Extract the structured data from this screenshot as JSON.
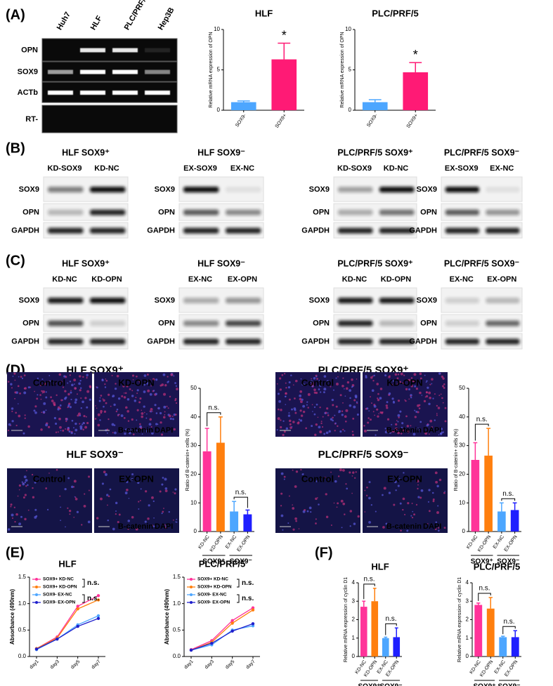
{
  "panel_labels": [
    "(A)",
    "(B)",
    "(C)",
    "(D)",
    "(E)",
    "(F)"
  ],
  "gel_a": {
    "lanes": [
      "Huh7",
      "HLF",
      "PLC/PRF/5",
      "Hep3B"
    ],
    "rows": [
      "OPN",
      "SOX9",
      "ACTb",
      "RT-"
    ]
  },
  "blots_b": [
    {
      "title": "HLF SOX9⁺",
      "lanes": [
        "KD-SOX9",
        "KD-NC"
      ],
      "rows": [
        "SOX9",
        "OPN",
        "GAPDH"
      ]
    },
    {
      "title": "HLF SOX9⁻",
      "lanes": [
        "EX-SOX9",
        "EX-NC"
      ],
      "rows": [
        "SOX9",
        "OPN",
        "GAPDH"
      ]
    },
    {
      "title": "PLC/PRF/5 SOX9⁺",
      "lanes": [
        "KD-SOX9",
        "KD-NC"
      ],
      "rows": [
        "SOX9",
        "OPN",
        "GAPDH"
      ]
    },
    {
      "title": "PLC/PRF/5 SOX9⁻",
      "lanes": [
        "EX-SOX9",
        "EX-NC"
      ],
      "rows": [
        "SOX9",
        "OPN",
        "GAPDH"
      ]
    }
  ],
  "blots_c": [
    {
      "title": "HLF SOX9⁺",
      "lanes": [
        "KD-NC",
        "KD-OPN"
      ],
      "rows": [
        "SOX9",
        "OPN",
        "GAPDH"
      ]
    },
    {
      "title": "HLF SOX9⁻",
      "lanes": [
        "EX-NC",
        "EX-OPN"
      ],
      "rows": [
        "SOX9",
        "OPN",
        "GAPDH"
      ]
    },
    {
      "title": "PLC/PRF/5 SOX9⁺",
      "lanes": [
        "KD-NC",
        "KD-OPN"
      ],
      "rows": [
        "SOX9",
        "OPN",
        "GAPDH"
      ]
    },
    {
      "title": "PLC/PRF/5 SOX9⁻",
      "lanes": [
        "EX-NC",
        "EX-OPN"
      ],
      "rows": [
        "SOX9",
        "OPN",
        "GAPDH"
      ]
    }
  ],
  "micrographs": [
    {
      "title": "HLF SOX9⁺",
      "panels": [
        "Control",
        "KD-OPN"
      ],
      "stain": [
        "B-catenin",
        "DAPI"
      ]
    },
    {
      "title": "HLF SOX9⁻",
      "panels": [
        "Control",
        "EX-OPN"
      ],
      "stain": [
        "B-catenin",
        "DAPI"
      ]
    },
    {
      "title": "PLC/PRF/5 SOX9⁺",
      "panels": [
        "Control",
        "KD-OPN"
      ],
      "stain": [
        "B-catenin",
        "DAPI"
      ]
    },
    {
      "title": "PLC/PRF/5 SOX9⁻",
      "panels": [
        "Control",
        "EX-OPN"
      ],
      "stain": [
        "B-catenin",
        "DAPI"
      ]
    }
  ],
  "chart_data": [
    {
      "type": "bar",
      "title": "HLF",
      "y_label": "Relative mRNA expression of OPN",
      "categories": [
        "SOX9-",
        "SOX9+"
      ],
      "values": [
        1.0,
        6.3
      ],
      "errors": [
        0.15,
        2.0
      ],
      "colors": [
        "#4da6ff",
        "#ff1a75"
      ],
      "ylim": [
        0,
        10
      ],
      "yticks": [
        0,
        5,
        10
      ],
      "annotations": [
        "*"
      ]
    },
    {
      "type": "bar",
      "title": "PLC/PRF/5",
      "y_label": "Relative mRNA expression of OPN",
      "categories": [
        "SOX9-",
        "SOX9+"
      ],
      "values": [
        1.0,
        4.7
      ],
      "errors": [
        0.3,
        1.2
      ],
      "colors": [
        "#4da6ff",
        "#ff1a75"
      ],
      "ylim": [
        0,
        10
      ],
      "yticks": [
        0,
        5,
        10
      ],
      "annotations": [
        "*"
      ]
    },
    {
      "type": "bar",
      "y_label": "Ratio of B-catenin+ cells (%)",
      "categories": [
        "KD-NC",
        "KD-OPN",
        "EX-NC",
        "EX-OPN"
      ],
      "values": [
        28,
        31,
        7,
        6
      ],
      "errors": [
        8,
        9,
        3.5,
        1.5
      ],
      "colors": [
        "#ff3399",
        "#ff7f0e",
        "#4da6ff",
        "#1f1fff"
      ],
      "ylim": [
        0,
        50
      ],
      "yticks": [
        0,
        10,
        20,
        30,
        40,
        50
      ],
      "groups": [
        "SOX9⁺",
        "SOX9⁻"
      ],
      "annotations": [
        "n.s.",
        "n.s."
      ]
    },
    {
      "type": "bar",
      "y_label": "Ratio of B-catenin+ cells (%)",
      "categories": [
        "KD-NC",
        "KD-OPN",
        "EX-NC",
        "EX-OPN"
      ],
      "values": [
        25,
        26.5,
        7,
        7.5
      ],
      "errors": [
        6,
        9.5,
        3,
        2.5
      ],
      "colors": [
        "#ff3399",
        "#ff7f0e",
        "#4da6ff",
        "#1f1fff"
      ],
      "ylim": [
        0,
        50
      ],
      "yticks": [
        0,
        10,
        20,
        30,
        40,
        50
      ],
      "groups": [
        "SOX9⁺",
        "SOX9⁻"
      ],
      "annotations": [
        "n.s.",
        "n.s."
      ]
    },
    {
      "type": "line",
      "title": "HLF",
      "y_label": "Absorbance (490nm)",
      "categories": [
        "day1",
        "day3",
        "day5",
        "day7"
      ],
      "ylim": [
        0,
        1.5
      ],
      "yticks": [
        {
          "value": 0,
          "label": "0.0"
        },
        0.5,
        {
          "value": 1,
          "label": "1.0"
        },
        1.5
      ],
      "series": [
        {
          "name": "SOX9+ KD-NC",
          "color": "#ff3399",
          "values": [
            0.15,
            0.37,
            0.95,
            1.15
          ]
        },
        {
          "name": "SOX9+ KD-OPN",
          "color": "#ff7f0e",
          "values": [
            0.15,
            0.35,
            0.9,
            1.07
          ]
        },
        {
          "name": "SOX9-  EX-NC",
          "color": "#4da6ff",
          "values": [
            0.13,
            0.33,
            0.6,
            0.77
          ]
        },
        {
          "name": "SOX9-  EX-OPN",
          "color": "#1f1fcc",
          "values": [
            0.14,
            0.33,
            0.57,
            0.72
          ]
        }
      ],
      "annotations": [
        "n.s.",
        "n.s."
      ]
    },
    {
      "type": "line",
      "title": "PLC/PRF/5",
      "y_label": "Absorbance (490nm)",
      "categories": [
        "day1",
        "day3",
        "day5",
        "day7"
      ],
      "ylim": [
        0,
        1.5
      ],
      "yticks": [
        {
          "value": 0,
          "label": "0.0"
        },
        0.5,
        {
          "value": 1,
          "label": "1.0"
        },
        1.5
      ],
      "series": [
        {
          "name": "SOX9+ KD-NC",
          "color": "#ff3399",
          "values": [
            0.13,
            0.3,
            0.68,
            0.92
          ]
        },
        {
          "name": "SOX9+ KD-OPN",
          "color": "#ff7f0e",
          "values": [
            0.12,
            0.27,
            0.63,
            0.88
          ]
        },
        {
          "name": "SOX9-  EX-NC",
          "color": "#4da6ff",
          "values": [
            0.12,
            0.22,
            0.5,
            0.58
          ]
        },
        {
          "name": "SOX9-  EX-OPN",
          "color": "#1f1fcc",
          "values": [
            0.12,
            0.25,
            0.48,
            0.62
          ]
        }
      ],
      "annotations": [
        "n.s.",
        "n.s."
      ]
    },
    {
      "type": "bar",
      "title": "HLF",
      "y_label": "Relative mRNA expression of cyclin D1",
      "categories": [
        "KD-NC",
        "KD-OPN",
        "EX-NC",
        "EX-OPN"
      ],
      "values": [
        2.7,
        3.0,
        1.0,
        1.05
      ],
      "errors": [
        0.3,
        0.7,
        0.05,
        0.5
      ],
      "colors": [
        "#ff3399",
        "#ff7f0e",
        "#4da6ff",
        "#1f1fff"
      ],
      "ylim": [
        0,
        4
      ],
      "yticks": [
        0,
        1,
        2,
        3,
        4
      ],
      "groups": [
        "SOX9⁺",
        "SOX9⁻"
      ],
      "annotations": [
        "n.s.",
        "n.s."
      ]
    },
    {
      "type": "bar",
      "title": "PLC/PRF/5",
      "y_label": "Relative mRNA expression of cyclin D1",
      "categories": [
        "KD-NC",
        "KD-OPN",
        "EX-NC",
        "EX-OPN"
      ],
      "values": [
        2.8,
        2.6,
        1.05,
        1.05
      ],
      "errors": [
        0.1,
        0.6,
        0.05,
        0.35
      ],
      "colors": [
        "#ff3399",
        "#ff7f0e",
        "#4da6ff",
        "#1f1fff"
      ],
      "ylim": [
        0,
        4
      ],
      "yticks": [
        0,
        1,
        2,
        3,
        4
      ],
      "groups": [
        "SOX9⁺",
        "SOX9⁻"
      ],
      "annotations": [
        "n.s.",
        "n.s."
      ]
    }
  ]
}
